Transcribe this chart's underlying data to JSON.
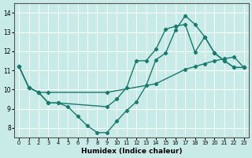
{
  "xlabel": "Humidex (Indice chaleur)",
  "ylabel": "",
  "background_color": "#c8ebe8",
  "grid_color": "#ffffff",
  "line_color": "#1a7a6e",
  "xlim": [
    -0.5,
    23.5
  ],
  "ylim": [
    7.5,
    14.5
  ],
  "xticks": [
    0,
    1,
    2,
    3,
    4,
    5,
    6,
    7,
    8,
    9,
    10,
    11,
    12,
    13,
    14,
    15,
    16,
    17,
    18,
    19,
    20,
    21,
    22,
    23
  ],
  "yticks": [
    8,
    9,
    10,
    11,
    12,
    13,
    14
  ],
  "line1_x": [
    0,
    1,
    2,
    3,
    4,
    5,
    6,
    7,
    8,
    9,
    10,
    11,
    12,
    13,
    14,
    15,
    16,
    17,
    18,
    19,
    20,
    21,
    22,
    23
  ],
  "line1_y": [
    11.2,
    10.1,
    9.85,
    9.3,
    9.3,
    9.1,
    8.6,
    8.1,
    7.75,
    7.75,
    8.35,
    8.9,
    9.35,
    10.2,
    11.55,
    11.9,
    13.1,
    13.85,
    13.4,
    12.75,
    11.9,
    11.5,
    11.15,
    11.15
  ],
  "line2_x": [
    0,
    1,
    2,
    3,
    4,
    9,
    10,
    11,
    12,
    13,
    14,
    15,
    16,
    17,
    18,
    19,
    20,
    21,
    22,
    23
  ],
  "line2_y": [
    11.2,
    10.1,
    9.85,
    9.3,
    9.3,
    9.1,
    9.5,
    10.1,
    11.5,
    11.5,
    12.1,
    13.15,
    13.3,
    13.4,
    11.95,
    12.75,
    11.9,
    11.5,
    11.15,
    11.15
  ],
  "line3_x": [
    0,
    1,
    2,
    3,
    9,
    14,
    17,
    18,
    19,
    20,
    21,
    22,
    23
  ],
  "line3_y": [
    11.2,
    10.1,
    9.85,
    9.85,
    9.85,
    10.3,
    11.05,
    11.2,
    11.35,
    11.5,
    11.6,
    11.7,
    11.15
  ]
}
